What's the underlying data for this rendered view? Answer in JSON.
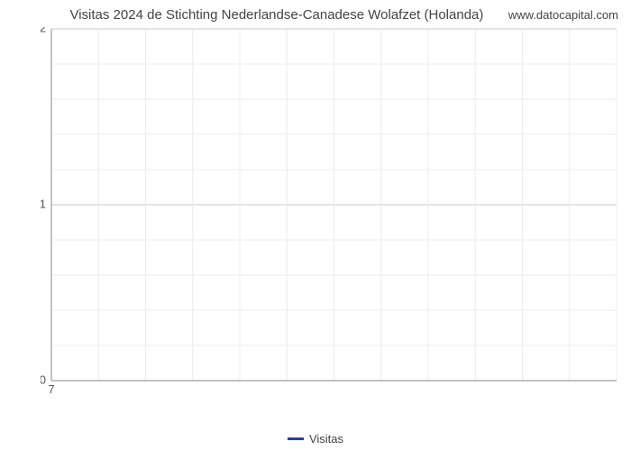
{
  "chart": {
    "type": "line",
    "title": "Visitas 2024 de Stichting Nederlandse-Canadese Wolafzet (Holanda)",
    "domain_label": "www.datocapital.com",
    "title_fontsize": 15,
    "title_color": "#444444",
    "background_color": "#ffffff",
    "grid_color_major": "#c8c8c8",
    "grid_color_minor": "#ececec",
    "axis_line_color": "#9e9e9e",
    "tick_label_color": "#555555",
    "tick_label_fontsize": 13,
    "y": {
      "min": 0,
      "max": 2,
      "major_ticks": [
        0,
        1,
        2
      ],
      "minor_per_major": 4
    },
    "x": {
      "min": 7,
      "max": 19,
      "major_ticks": [
        7
      ],
      "grid_line_count": 12
    },
    "legend": {
      "label": "Visitas",
      "color": "#1f3fb5",
      "line_width": 3
    },
    "series": {
      "name": "Visitas",
      "color": "#1f3fb5",
      "line_width": 2,
      "points": []
    }
  }
}
